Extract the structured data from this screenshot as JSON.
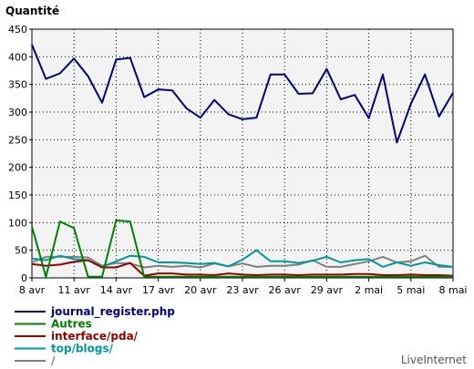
{
  "chart_data": {
    "type": "line",
    "ylabel": "Quantité",
    "ylim": [
      0,
      450
    ],
    "yticks": [
      0,
      50,
      100,
      150,
      200,
      250,
      300,
      350,
      400,
      450
    ],
    "grid": true,
    "legend_position": "bottom-left",
    "x": [
      "8 avr",
      "9 avr",
      "10 avr",
      "11 avr",
      "12 avr",
      "13 avr",
      "14 avr",
      "15 avr",
      "16 avr",
      "17 avr",
      "18 avr",
      "19 avr",
      "20 avr",
      "21 avr",
      "22 avr",
      "23 avr",
      "24 avr",
      "25 avr",
      "26 avr",
      "27 avr",
      "28 avr",
      "29 avr",
      "30 avr",
      "1 mai",
      "2 mai",
      "3 mai",
      "4 mai",
      "5 mai",
      "6 mai",
      "7 mai",
      "8 mai"
    ],
    "xticks": [
      "8 avr",
      "11 avr",
      "14 avr",
      "17 avr",
      "20 avr",
      "23 avr",
      "26 avr",
      "29 avr",
      "2 mai",
      "5 mai",
      "8 mai"
    ],
    "series": [
      {
        "name": "journal_register.php",
        "color": "#000080",
        "values": [
          422,
          360,
          370,
          397,
          365,
          317,
          395,
          398,
          327,
          341,
          339,
          307,
          290,
          322,
          296,
          287,
          290,
          368,
          368,
          333,
          334,
          378,
          323,
          331,
          289,
          368,
          245,
          315,
          368,
          292,
          335
        ]
      },
      {
        "name": "Autres",
        "color": "#008000",
        "values": [
          93,
          2,
          102,
          90,
          2,
          2,
          104,
          102,
          2,
          2,
          2,
          2,
          2,
          2,
          2,
          2,
          2,
          2,
          2,
          2,
          2,
          2,
          2,
          2,
          2,
          2,
          2,
          2,
          2,
          2,
          2
        ]
      },
      {
        "name": "interface/pda/",
        "color": "#990000",
        "values": [
          25,
          22,
          24,
          29,
          32,
          19,
          19,
          27,
          4,
          8,
          8,
          6,
          6,
          5,
          8,
          6,
          5,
          6,
          6,
          5,
          6,
          6,
          6,
          7,
          7,
          5,
          5,
          6,
          5,
          5,
          4
        ]
      },
      {
        "name": "top/blogs/",
        "color": "#009999",
        "values": [
          35,
          32,
          40,
          34,
          32,
          20,
          30,
          40,
          38,
          28,
          28,
          27,
          25,
          27,
          21,
          33,
          50,
          30,
          30,
          27,
          31,
          38,
          28,
          32,
          34,
          20,
          28,
          22,
          28,
          23,
          20
        ]
      },
      {
        "name": "/",
        "color": "#808080",
        "values": [
          28,
          38,
          38,
          38,
          37,
          22,
          27,
          26,
          19,
          22,
          20,
          22,
          19,
          26,
          21,
          26,
          20,
          22,
          22,
          24,
          32,
          20,
          20,
          25,
          30,
          38,
          28,
          30,
          40,
          20,
          20
        ]
      }
    ],
    "credit": "LiveInternet"
  }
}
